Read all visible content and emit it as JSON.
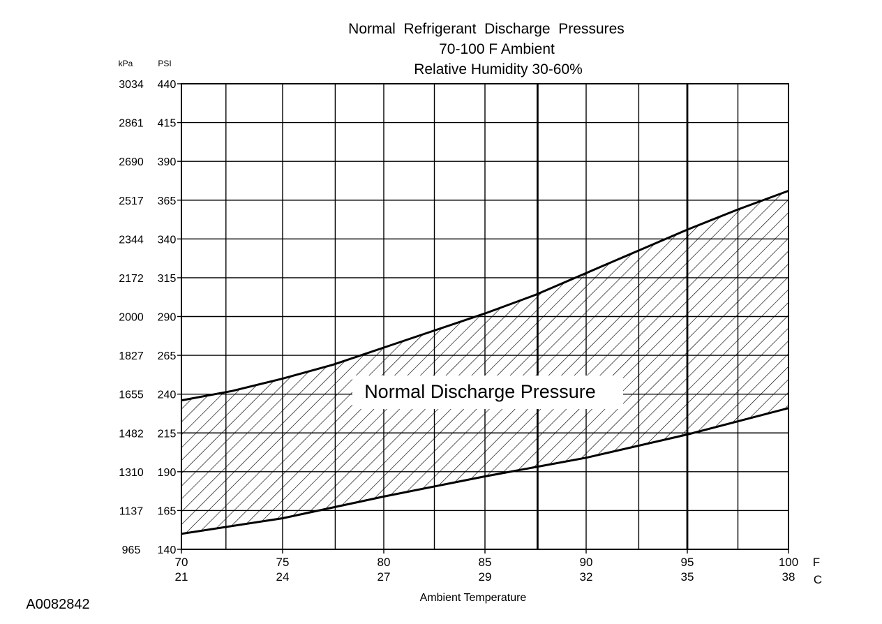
{
  "chart_data": {
    "type": "area",
    "title": [
      "Normal  Refrigerant  Discharge  Pressures",
      "70-100 F Ambient",
      "Relative Humidity 30-60%"
    ],
    "xlabel": "Ambient Temperature",
    "x_unit_primary": "F",
    "x_unit_secondary": "C",
    "xlim": [
      70,
      100
    ],
    "x_ticks_f": [
      "70",
      "75",
      "80",
      "85",
      "90",
      "95",
      "100"
    ],
    "x_ticks_c": [
      "21",
      "24",
      "27",
      "29",
      "32",
      "35",
      "38"
    ],
    "x_tick_values": [
      70,
      75,
      80,
      85,
      90,
      95,
      100
    ],
    "x_grid": [
      72.2,
      75,
      77.6,
      80,
      82.5,
      85,
      87.6,
      90,
      92.6,
      95,
      97.5,
      100
    ],
    "x_grid_bold": [
      87.6,
      95
    ],
    "y_unit_left": "kPa",
    "y_unit_right": "PSI",
    "ylim": [
      140,
      440
    ],
    "y_ticks_psi": [
      "440",
      "415",
      "390",
      "365",
      "340",
      "315",
      "290",
      "265",
      "240",
      "215",
      "190",
      "165",
      "140"
    ],
    "y_ticks_kpa": [
      "3034",
      "2861",
      "2690",
      "2517",
      "2344",
      "2172",
      "2000",
      "1827",
      "1655",
      "1482",
      "1310",
      "1137",
      "965"
    ],
    "y_tick_values": [
      440,
      415,
      390,
      365,
      340,
      315,
      290,
      265,
      240,
      215,
      190,
      165,
      140
    ],
    "series": [
      {
        "name": "upper",
        "x": [
          70,
          72.5,
          75,
          77.5,
          80,
          82.5,
          85,
          87.5,
          90,
          92.5,
          95,
          97.5,
          100
        ],
        "values": [
          236,
          242,
          250,
          259,
          270,
          281,
          292,
          304,
          318,
          332,
          346,
          359,
          371
        ]
      },
      {
        "name": "lower",
        "x": [
          70,
          75,
          80,
          85,
          90,
          95,
          100
        ],
        "values": [
          150,
          160,
          174,
          187,
          199,
          214,
          231
        ]
      }
    ],
    "region_label": "Normal Discharge Pressure",
    "colors": {
      "line": "#000000",
      "hatch": "#000000",
      "background": "#ffffff"
    }
  },
  "figure_id": "A0082842"
}
